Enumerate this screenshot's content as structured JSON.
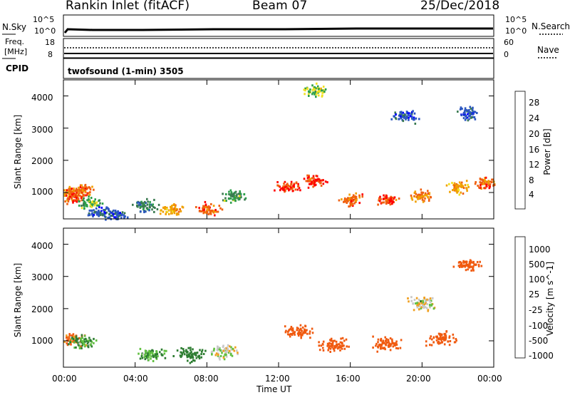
{
  "header": {
    "title": "Rankin Inlet (fitACF)",
    "beam": "Beam 07",
    "date": "25/Dec/2018"
  },
  "summary": {
    "nsky_label": "N.Sky",
    "nsearch_label": "N.Search",
    "nave_label": "Nave",
    "freq_label_line1": "Freq.",
    "freq_label_line2": "[MHz]",
    "cpid_label": "CPID",
    "cpid_text": "twofsound (1-min) 3505",
    "nsky_ticks": [
      "10^5",
      "10^0"
    ],
    "nsearch_ticks": [
      "10^5",
      "10^0"
    ],
    "freq_ticks": [
      "18",
      "8"
    ],
    "nave_ticks": [
      "60",
      "0"
    ]
  },
  "colors": {
    "power": [
      "#0000ff",
      "#2b56c0",
      "#3a7a50",
      "#2ca04a",
      "#f0e020",
      "#f0a000",
      "#f06010",
      "#ff0000"
    ],
    "velocity": [
      "#ff0000",
      "#f05a10",
      "#f0a020",
      "#c8c8c8",
      "#60c040",
      "#2e7d32",
      "#2040d0"
    ]
  },
  "chart_data": [
    {
      "type": "heatmap",
      "name": "power",
      "ylabel": "Slant Range [km]",
      "xlabel": "",
      "xlim": [
        "00:00",
        "00:00"
      ],
      "ylim": [
        180,
        4500
      ],
      "yticks": [
        "1000",
        "2000",
        "3000",
        "4000"
      ],
      "colorbar_label": "Power [dB]",
      "colorbar_ticks": [
        "4",
        "8",
        "12",
        "16",
        "20",
        "24",
        "28"
      ],
      "cells": [
        {
          "t": 0.2,
          "r": 1000,
          "v": 22
        },
        {
          "t": 0.6,
          "r": 900,
          "v": 28
        },
        {
          "t": 1.0,
          "r": 1100,
          "v": 26
        },
        {
          "t": 1.4,
          "r": 700,
          "v": 14
        },
        {
          "t": 2.0,
          "r": 400,
          "v": 6
        },
        {
          "t": 3.0,
          "r": 300,
          "v": 6
        },
        {
          "t": 4.5,
          "r": 600,
          "v": 10
        },
        {
          "t": 6.0,
          "r": 500,
          "v": 22
        },
        {
          "t": 8.0,
          "r": 500,
          "v": 26
        },
        {
          "t": 9.5,
          "r": 900,
          "v": 12
        },
        {
          "t": 12.5,
          "r": 1200,
          "v": 28
        },
        {
          "t": 14.0,
          "r": 1400,
          "v": 28
        },
        {
          "t": 16.0,
          "r": 800,
          "v": 26
        },
        {
          "t": 18.0,
          "r": 800,
          "v": 28
        },
        {
          "t": 20.0,
          "r": 900,
          "v": 24
        },
        {
          "t": 22.0,
          "r": 1200,
          "v": 22
        },
        {
          "t": 23.5,
          "r": 1300,
          "v": 26
        },
        {
          "t": 19.0,
          "r": 3400,
          "v": 6
        },
        {
          "t": 22.5,
          "r": 3500,
          "v": 6
        },
        {
          "t": 14.0,
          "r": 4200,
          "v": 16
        }
      ]
    },
    {
      "type": "heatmap",
      "name": "velocity",
      "ylabel": "Slant Range [km]",
      "xlabel": "Time UT",
      "xticks": [
        "00:00",
        "04:00",
        "08:00",
        "12:00",
        "16:00",
        "20:00",
        "00:00"
      ],
      "xlim": [
        "00:00",
        "00:00"
      ],
      "ylim": [
        180,
        4500
      ],
      "yticks": [
        "1000",
        "2000",
        "3000",
        "4000"
      ],
      "colorbar_label": "Velocity [m s^-1]",
      "colorbar_ticks": [
        "1000",
        "500",
        "100",
        "25",
        "-25",
        "-100",
        "-500",
        "-1000"
      ],
      "cells": [
        {
          "t": 0.3,
          "r": 1100,
          "v": -100
        },
        {
          "t": 1.0,
          "r": 1000,
          "v": 100
        },
        {
          "t": 5.0,
          "r": 600,
          "v": 100
        },
        {
          "t": 7.0,
          "r": 600,
          "v": 200
        },
        {
          "t": 9.0,
          "r": 700,
          "v": 0
        },
        {
          "t": 13.0,
          "r": 1300,
          "v": -300
        },
        {
          "t": 15.0,
          "r": 900,
          "v": -200
        },
        {
          "t": 18.0,
          "r": 900,
          "v": -400
        },
        {
          "t": 21.0,
          "r": 1100,
          "v": -300
        },
        {
          "t": 20.0,
          "r": 2200,
          "v": 0
        },
        {
          "t": 22.5,
          "r": 3400,
          "v": -300
        }
      ]
    }
  ]
}
